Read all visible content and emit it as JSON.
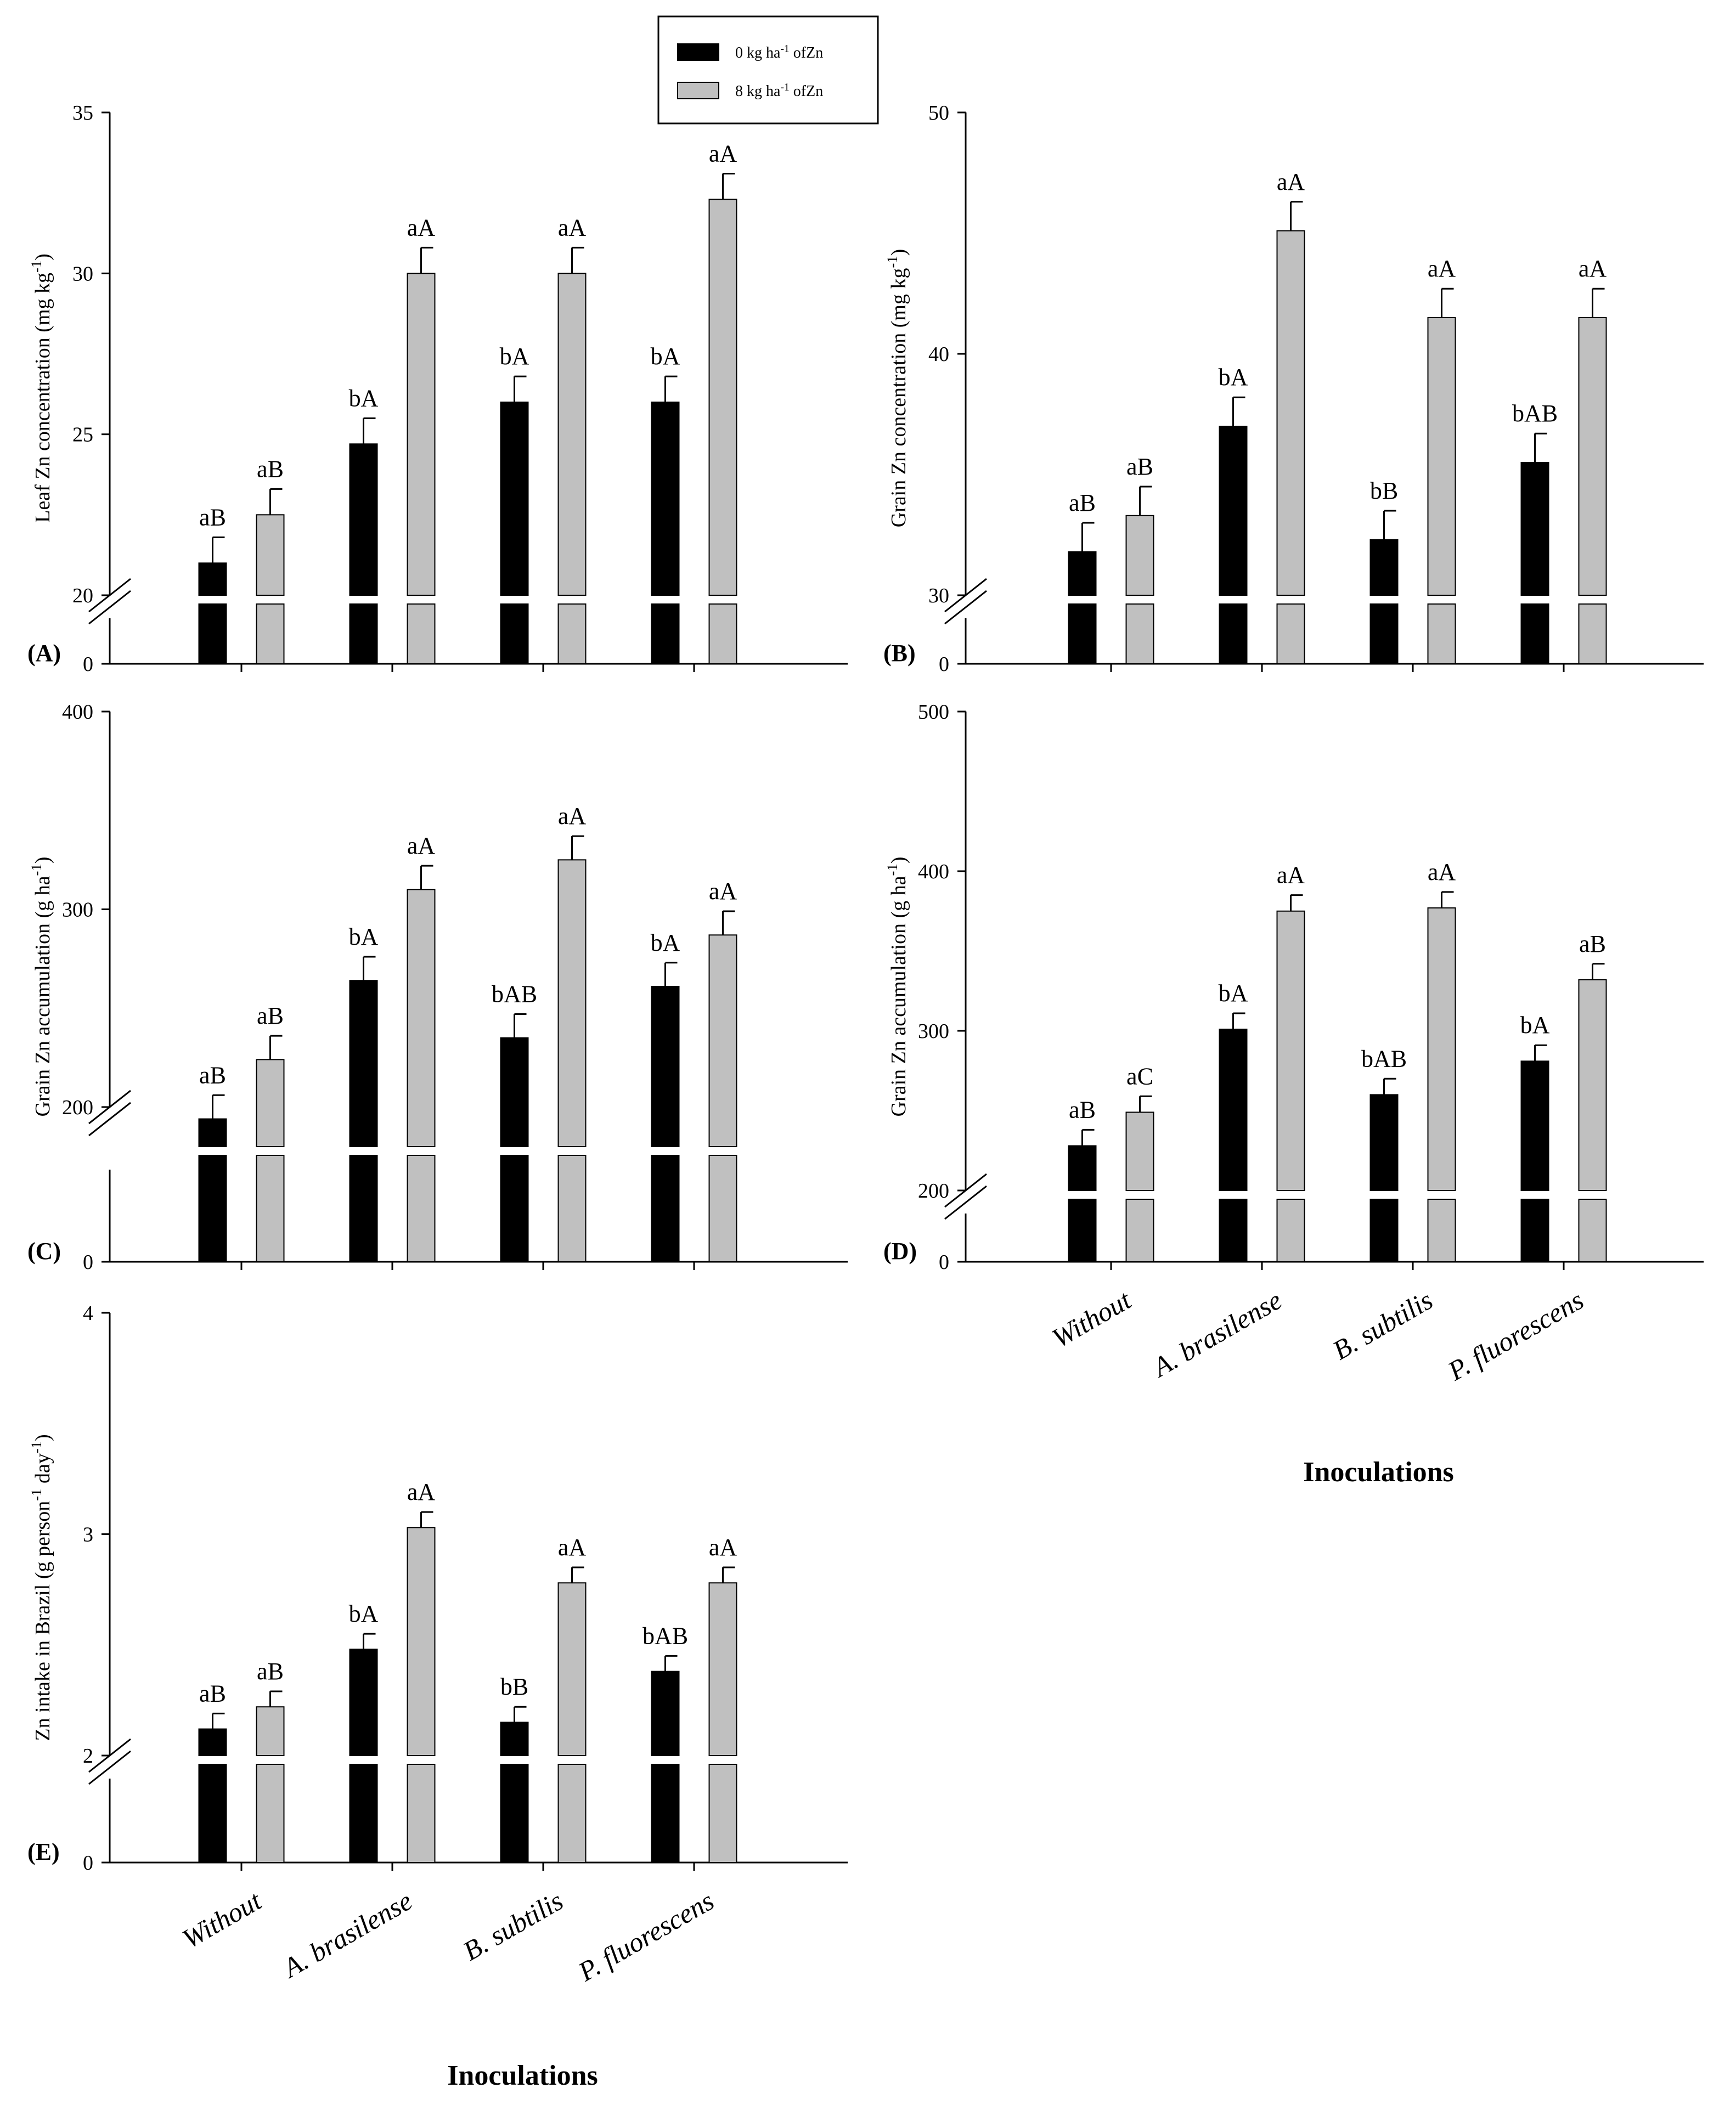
{
  "legend": {
    "entries": [
      {
        "pre": "0 kg ha",
        "sup": "-1",
        "post": " ofZn",
        "color": "#000000"
      },
      {
        "pre": "8 kg ha",
        "sup": "-1",
        "post": " ofZn",
        "color": "#c0c0c0"
      }
    ]
  },
  "x_axis_title": "Inoculations",
  "chart_data": [
    {
      "type": "bar",
      "panel": "(A)",
      "ylabel": {
        "pre": "Leaf Zn concentration (mg kg",
        "sup": "-1",
        "post": ")"
      },
      "categories": [
        "Without",
        "A. brasilense",
        "B. subtilis",
        "P. fluorescens"
      ],
      "yticks": [
        20,
        25,
        30,
        35
      ],
      "ylim": [
        20,
        35
      ],
      "series": [
        {
          "name": "0 kg ha-1 of Zn",
          "values": [
            21,
            24.7,
            26,
            26
          ],
          "errors": [
            0.8,
            0.8,
            0.8,
            0.8
          ],
          "labels": [
            "aB",
            "bA",
            "bA",
            "bA"
          ]
        },
        {
          "name": "8 kg ha-1 of Zn",
          "values": [
            22.5,
            30,
            30,
            32.3
          ],
          "errors": [
            0.8,
            0.8,
            0.8,
            0.8
          ],
          "labels": [
            "aB",
            "aA",
            "aA",
            "aA"
          ]
        }
      ]
    },
    {
      "type": "bar",
      "panel": "(B)",
      "ylabel": {
        "pre": "Grain Zn concentration (mg kg",
        "sup": "-1",
        "post": ")"
      },
      "categories": [
        "Without",
        "A. brasilense",
        "B. subtilis",
        "P. fluorescens"
      ],
      "yticks": [
        30,
        40,
        50
      ],
      "ylim": [
        30,
        50
      ],
      "series": [
        {
          "name": "0 kg ha-1 of Zn",
          "values": [
            31.8,
            37,
            32.3,
            35.5
          ],
          "errors": [
            1.2,
            1.2,
            1.2,
            1.2
          ],
          "labels": [
            "aB",
            "bA",
            "bB",
            "bAB"
          ]
        },
        {
          "name": "8 kg ha-1 of Zn",
          "values": [
            33.3,
            45.1,
            41.5,
            41.5
          ],
          "errors": [
            1.2,
            1.2,
            1.2,
            1.2
          ],
          "labels": [
            "aB",
            "aA",
            "aA",
            "aA"
          ]
        }
      ]
    },
    {
      "type": "bar",
      "panel": "(C)",
      "ylabel": {
        "pre": "Grain Zn accumulation (g ha",
        "sup": "-1",
        "post": ")"
      },
      "categories": [
        "Without",
        "A. brasilense",
        "B. subtilis",
        "P. fluorescens"
      ],
      "yticks": [
        200,
        300,
        400
      ],
      "ylim": [
        180,
        400
      ],
      "series": [
        {
          "name": "0 kg ha-1 of Zn",
          "values": [
            194,
            264,
            235,
            261
          ],
          "errors": [
            12,
            12,
            12,
            12
          ],
          "labels": [
            "aB",
            "bA",
            "bAB",
            "bA"
          ]
        },
        {
          "name": "8 kg ha-1 of Zn",
          "values": [
            224,
            310,
            325,
            287
          ],
          "errors": [
            12,
            12,
            12,
            12
          ],
          "labels": [
            "aB",
            "aA",
            "aA",
            "aA"
          ]
        }
      ]
    },
    {
      "type": "bar",
      "panel": "(D)",
      "ylabel": {
        "pre": "Grain Zn accumulation (g ha",
        "sup": "-1",
        "post": ")"
      },
      "categories": [
        "Without",
        "A. brasilense",
        "B. subtilis",
        "P. fluorescens"
      ],
      "yticks": [
        200,
        300,
        400,
        500
      ],
      "ylim": [
        200,
        500
      ],
      "series": [
        {
          "name": "0 kg ha-1 of Zn",
          "values": [
            228,
            301,
            260,
            281
          ],
          "errors": [
            10,
            10,
            10,
            10
          ],
          "labels": [
            "aB",
            "bA",
            "bAB",
            "bA"
          ]
        },
        {
          "name": "8 kg ha-1 of Zn",
          "values": [
            249,
            375,
            377,
            332
          ],
          "errors": [
            10,
            10,
            10,
            10
          ],
          "labels": [
            "aC",
            "aA",
            "aA",
            "aB"
          ]
        }
      ]
    },
    {
      "type": "bar",
      "panel": "(E)",
      "ylabel": {
        "pre": "Zn intake in Brazil (g person",
        "sup": "-1",
        "post": " day",
        "sup2": "-1",
        "post2": ")"
      },
      "categories": [
        "Without",
        "A. brasilense",
        "B. subtilis",
        "P. fluorescens"
      ],
      "yticks": [
        2,
        3,
        4
      ],
      "ylim": [
        2,
        4
      ],
      "series": [
        {
          "name": "0 kg ha-1 of Zn",
          "values": [
            2.12,
            2.48,
            2.15,
            2.38
          ],
          "errors": [
            0.07,
            0.07,
            0.07,
            0.07
          ],
          "labels": [
            "aB",
            "bA",
            "bB",
            "bAB"
          ]
        },
        {
          "name": "8 kg ha-1 of Zn",
          "values": [
            2.22,
            3.03,
            2.78,
            2.78
          ],
          "errors": [
            0.07,
            0.07,
            0.07,
            0.07
          ],
          "labels": [
            "aB",
            "aA",
            "aA",
            "aA"
          ]
        }
      ]
    }
  ]
}
